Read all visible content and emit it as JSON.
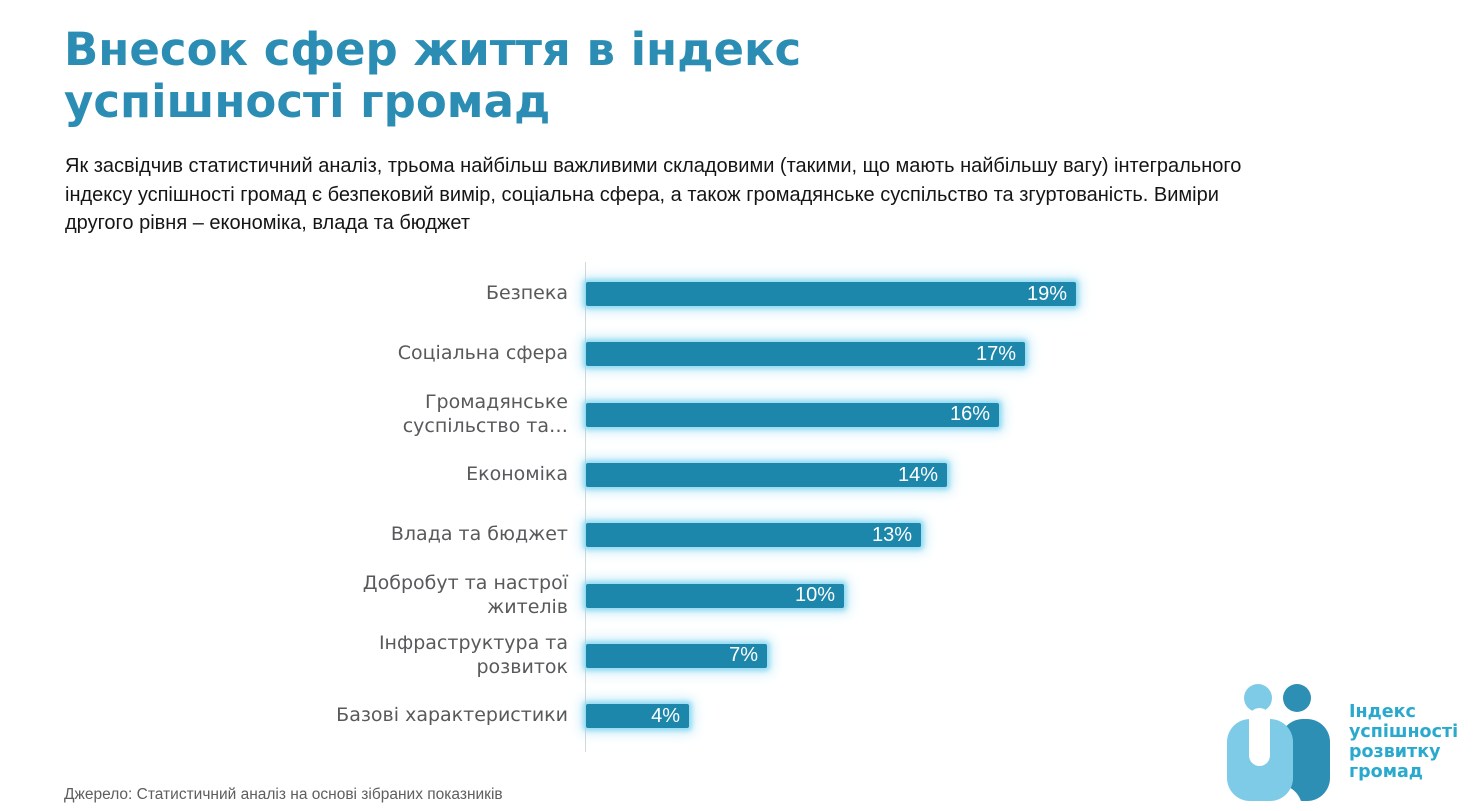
{
  "page": {
    "title": "Внесок сфер життя в індекс успішності громад",
    "subtitle": "Як засвідчив статистичний аналіз, трьома найбільш важливими складовими (такими, що мають найбільшу вагу) інтегрального індексу успішності громад є безпековий вимір, соціальна сфера, а також громадянське суспільство та згуртованість. Виміри другого рівня – економіка, влада та бюджет",
    "source": "Джерело: Статистичний аналіз на основі зібраних показників"
  },
  "colors": {
    "title_accent": "#2b8db3",
    "bar_fill": "#1c86ab",
    "bar_glow": "#8ed9f2",
    "axis_line": "#d6d6d6",
    "category_label": "#58595b",
    "value_label": "#ffffff",
    "body_text": "#151515",
    "source_text": "#5e5e5e"
  },
  "chart_data": {
    "type": "bar",
    "orientation": "horizontal",
    "title": "",
    "xlabel": "",
    "ylabel": "",
    "xlim": [
      0,
      20
    ],
    "grid": false,
    "legend": false,
    "categories": [
      "Безпека",
      "Соціальна сфера",
      "Громадянське суспільство та…",
      "Економіка",
      "Влада та бюджет",
      "Добробут та настрої жителів",
      "Інфраструктура та розвиток",
      "Базові характеристики"
    ],
    "values": [
      19,
      17,
      16,
      14,
      13,
      10,
      7,
      4
    ],
    "value_labels": [
      "19%",
      "17%",
      "16%",
      "14%",
      "13%",
      "10%",
      "7%",
      "4%"
    ],
    "unit": "%"
  },
  "logo": {
    "text": "Індекс\nуспішності\nрозвитку\nгромад",
    "colors": {
      "figure_light": "#7ecbe8",
      "figure_dark": "#2e8fb5",
      "text": "#29a9cd"
    }
  }
}
